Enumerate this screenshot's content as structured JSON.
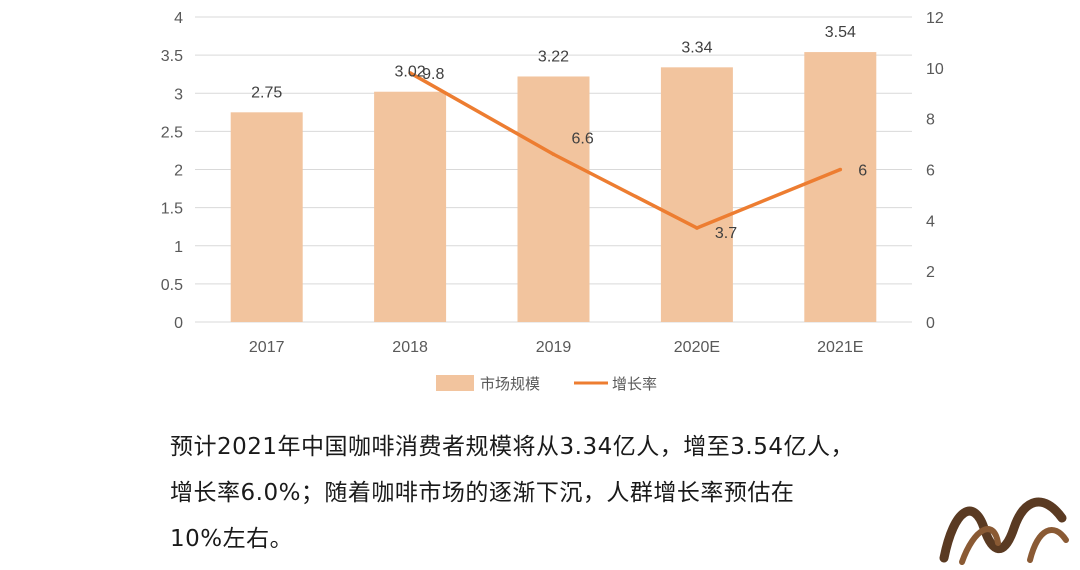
{
  "chart_data": {
    "type": "bar",
    "categories": [
      "2017",
      "2018",
      "2019",
      "2020E",
      "2021E"
    ],
    "series": [
      {
        "name": "市场规模",
        "type": "bar",
        "axis": "left",
        "values": [
          2.75,
          3.02,
          3.22,
          3.34,
          3.54
        ]
      },
      {
        "name": "增长率",
        "type": "line",
        "axis": "right",
        "values": [
          null,
          9.8,
          6.6,
          3.7,
          6
        ]
      }
    ],
    "y_left": {
      "min": 0,
      "max": 4,
      "step": 0.5,
      "ticks": [
        "0",
        "0.5",
        "1",
        "1.5",
        "2",
        "2.5",
        "3",
        "3.5",
        "4"
      ]
    },
    "y_right": {
      "min": 0,
      "max": 12,
      "step": 2,
      "ticks": [
        "0",
        "2",
        "4",
        "6",
        "8",
        "10",
        "12"
      ]
    },
    "bar_labels": [
      "2.75",
      "3.02",
      "3.22",
      "3.34",
      "3.54"
    ],
    "line_labels": [
      "",
      "9.8",
      "6.6",
      "3.7",
      "6"
    ],
    "grid": true,
    "legend_position": "bottom",
    "colors": {
      "bar": "#f2c49e",
      "line": "#ed7d31",
      "grid": "#d9d9d9"
    }
  },
  "caption": {
    "lines": [
      "预计2021年中国咖啡消费者规模将从3.34亿人，增至3.54亿人，",
      "增长率6.0%；随着咖啡市场的逐渐下沉，人群增长率预估在",
      "10%左右。"
    ]
  }
}
